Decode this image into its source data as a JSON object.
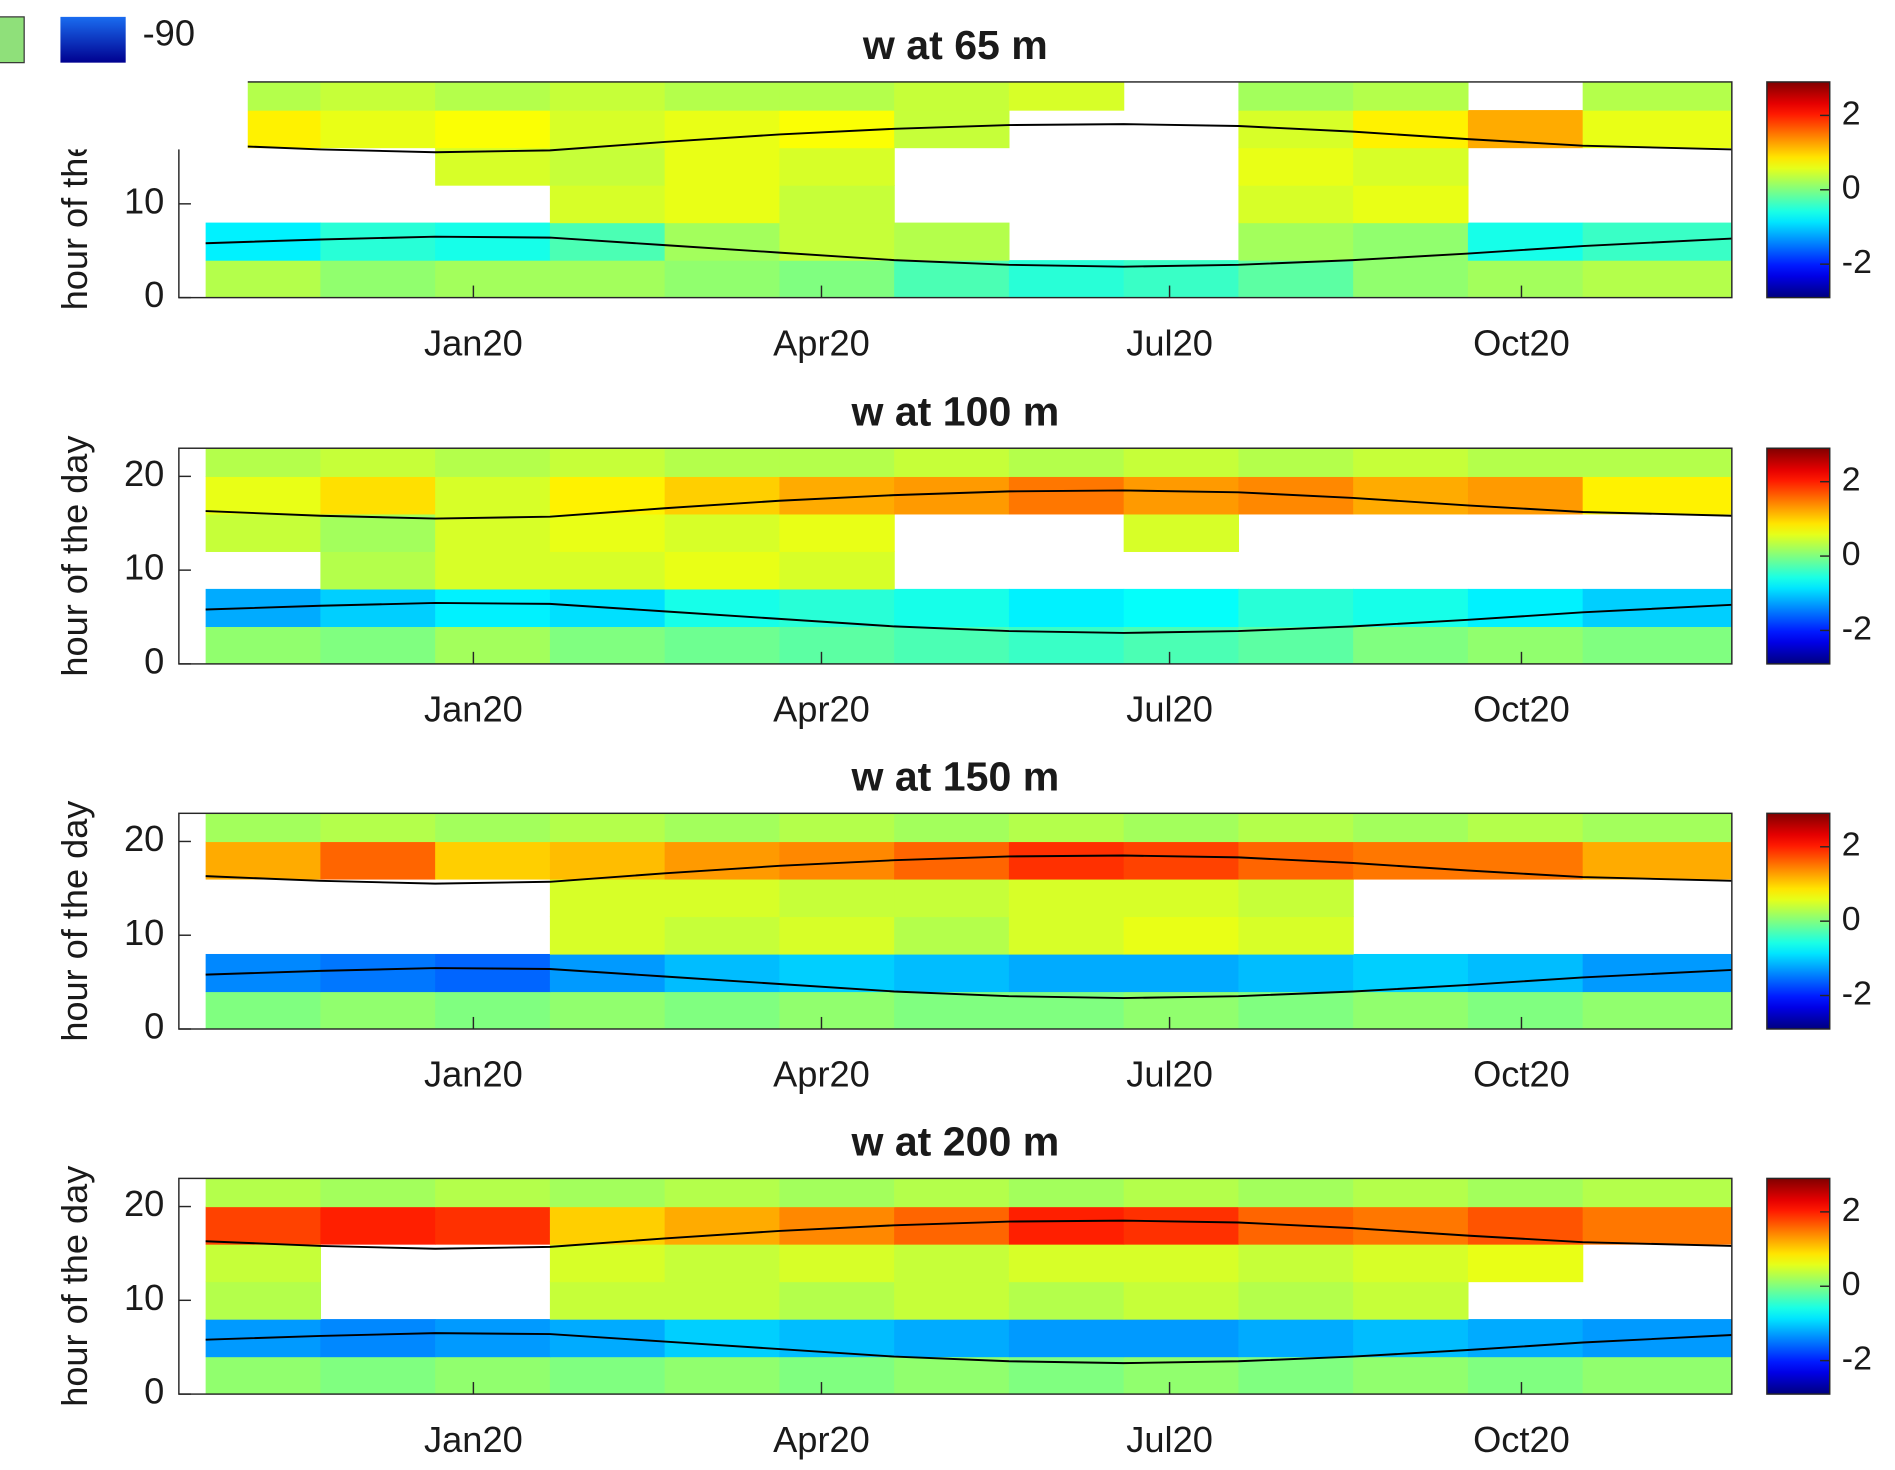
{
  "chart_data": [
    {
      "type": "heatmap",
      "title": "w at 65 m",
      "ylabel": "hour of the day",
      "colormap": "jet",
      "xlim": [
        -77,
        329
      ],
      "xticks": [
        {
          "value": 0,
          "label": "Jan20"
        },
        {
          "value": 91,
          "label": "Apr20"
        },
        {
          "value": 182,
          "label": "Jul20"
        },
        {
          "value": 274,
          "label": "Oct20"
        }
      ],
      "ylim": [
        0,
        23
      ],
      "yticks": [
        0,
        10
      ],
      "clim": [
        -2.9,
        2.9
      ],
      "cbar_ticks": [
        -2,
        0,
        2
      ],
      "x_bins": [
        -70,
        -40,
        -10,
        20,
        50,
        80,
        110,
        140,
        170,
        200,
        230,
        260,
        290,
        329
      ],
      "y_bins": [
        0,
        4,
        8,
        12,
        16,
        20,
        23
      ],
      "z": [
        [
          0.3,
          0.1,
          0.2,
          0.2,
          0.1,
          0.0,
          -0.3,
          -0.5,
          -0.4,
          -0.2,
          0.1,
          0.2,
          0.3
        ],
        [
          -0.8,
          -0.5,
          -0.6,
          -0.3,
          0.2,
          0.4,
          0.3,
          null,
          null,
          0.2,
          0.1,
          -0.6,
          -0.4
        ],
        [
          null,
          null,
          null,
          0.5,
          0.6,
          0.4,
          null,
          null,
          null,
          0.5,
          0.6,
          null,
          null
        ],
        [
          null,
          null,
          0.5,
          0.4,
          0.6,
          0.5,
          null,
          null,
          null,
          0.6,
          0.5,
          null,
          null
        ],
        [
          0.8,
          0.6,
          0.7,
          0.5,
          0.6,
          0.7,
          0.4,
          null,
          null,
          0.5,
          0.8,
          1.2,
          0.6
        ],
        [
          0.3,
          0.4,
          0.3,
          0.4,
          0.3,
          0.3,
          0.4,
          0.5,
          null,
          0.2,
          0.3,
          null,
          0.3
        ]
      ],
      "lines": {
        "x": [
          -70,
          -40,
          -10,
          20,
          50,
          80,
          110,
          140,
          170,
          200,
          230,
          260,
          290,
          329
        ],
        "series": [
          {
            "color": "#000000",
            "values": [
              16.3,
              15.8,
              15.5,
              15.7,
              16.6,
              17.4,
              18.0,
              18.4,
              18.5,
              18.3,
              17.7,
              16.9,
              16.2,
              15.8
            ]
          },
          {
            "color": "#000000",
            "values": [
              5.8,
              6.2,
              6.5,
              6.4,
              5.6,
              4.8,
              4.0,
              3.5,
              3.3,
              3.5,
              4.0,
              4.7,
              5.5,
              6.3
            ]
          }
        ]
      }
    },
    {
      "type": "heatmap",
      "title": "w at 100 m",
      "ylabel": "hour of the day",
      "colormap": "jet",
      "xlim": [
        -77,
        329
      ],
      "xticks": [
        {
          "value": 0,
          "label": "Jan20"
        },
        {
          "value": 91,
          "label": "Apr20"
        },
        {
          "value": 182,
          "label": "Jul20"
        },
        {
          "value": 274,
          "label": "Oct20"
        }
      ],
      "ylim": [
        0,
        23
      ],
      "yticks": [
        0,
        10,
        20
      ],
      "clim": [
        -2.9,
        2.9
      ],
      "cbar_ticks": [
        -2,
        0,
        2
      ],
      "x_bins": [
        -70,
        -40,
        -10,
        20,
        50,
        80,
        110,
        140,
        170,
        200,
        230,
        260,
        290,
        329
      ],
      "y_bins": [
        0,
        4,
        8,
        12,
        16,
        20,
        23
      ],
      "z": [
        [
          0.1,
          0.0,
          0.2,
          0.0,
          -0.1,
          -0.2,
          -0.3,
          -0.4,
          -0.3,
          -0.2,
          0.0,
          0.1,
          0.0
        ],
        [
          -1.2,
          -1.0,
          -0.8,
          -0.9,
          -0.6,
          -0.5,
          -0.6,
          -0.8,
          -0.7,
          -0.5,
          -0.6,
          -0.8,
          -1.0
        ],
        [
          null,
          0.3,
          0.5,
          0.5,
          0.6,
          0.5,
          null,
          null,
          null,
          null,
          null,
          null,
          null
        ],
        [
          0.4,
          0.2,
          0.5,
          0.6,
          0.5,
          0.6,
          null,
          null,
          0.5,
          null,
          null,
          null,
          null
        ],
        [
          0.6,
          0.9,
          0.5,
          0.8,
          1.0,
          1.2,
          1.3,
          1.5,
          1.3,
          1.4,
          1.2,
          1.3,
          0.8
        ],
        [
          0.3,
          0.4,
          0.3,
          0.4,
          0.3,
          0.3,
          0.4,
          0.3,
          0.4,
          0.3,
          0.4,
          0.3,
          0.3
        ]
      ],
      "lines": {
        "x": [
          -70,
          -40,
          -10,
          20,
          50,
          80,
          110,
          140,
          170,
          200,
          230,
          260,
          290,
          329
        ],
        "series": [
          {
            "color": "#000000",
            "values": [
              16.3,
              15.8,
              15.5,
              15.7,
              16.6,
              17.4,
              18.0,
              18.4,
              18.5,
              18.3,
              17.7,
              16.9,
              16.2,
              15.8
            ]
          },
          {
            "color": "#000000",
            "values": [
              5.8,
              6.2,
              6.5,
              6.4,
              5.6,
              4.8,
              4.0,
              3.5,
              3.3,
              3.5,
              4.0,
              4.7,
              5.5,
              6.3
            ]
          }
        ]
      }
    },
    {
      "type": "heatmap",
      "title": "w at 150 m",
      "ylabel": "hour of the day",
      "colormap": "jet",
      "xlim": [
        -77,
        329
      ],
      "xticks": [
        {
          "value": 0,
          "label": "Jan20"
        },
        {
          "value": 91,
          "label": "Apr20"
        },
        {
          "value": 182,
          "label": "Jul20"
        },
        {
          "value": 274,
          "label": "Oct20"
        }
      ],
      "ylim": [
        0,
        23
      ],
      "yticks": [
        0,
        10,
        20
      ],
      "clim": [
        -2.9,
        2.9
      ],
      "cbar_ticks": [
        -2,
        0,
        2
      ],
      "x_bins": [
        -70,
        -40,
        -10,
        20,
        50,
        80,
        110,
        140,
        170,
        200,
        230,
        260,
        290,
        329
      ],
      "y_bins": [
        0,
        4,
        8,
        12,
        16,
        20,
        23
      ],
      "z": [
        [
          0.0,
          0.1,
          0.0,
          0.1,
          0.0,
          0.1,
          0.0,
          0.0,
          0.1,
          0.0,
          0.1,
          0.0,
          0.1
        ],
        [
          -1.4,
          -1.5,
          -1.6,
          -1.3,
          -1.1,
          -1.0,
          -1.1,
          -1.2,
          -1.2,
          -1.1,
          -1.0,
          -1.1,
          -1.3
        ],
        [
          null,
          null,
          null,
          0.5,
          0.4,
          0.5,
          0.3,
          0.5,
          0.6,
          0.5,
          null,
          null,
          null
        ],
        [
          null,
          null,
          null,
          0.5,
          0.5,
          0.4,
          0.4,
          0.5,
          0.5,
          0.4,
          null,
          null,
          null
        ],
        [
          1.2,
          1.6,
          1.0,
          1.1,
          1.3,
          1.4,
          1.6,
          1.9,
          1.8,
          1.6,
          1.5,
          1.5,
          1.2
        ],
        [
          0.2,
          0.3,
          0.2,
          0.3,
          0.2,
          0.3,
          0.2,
          0.3,
          0.2,
          0.3,
          0.2,
          0.3,
          0.2
        ]
      ],
      "lines": {
        "x": [
          -70,
          -40,
          -10,
          20,
          50,
          80,
          110,
          140,
          170,
          200,
          230,
          260,
          290,
          329
        ],
        "series": [
          {
            "color": "#000000",
            "values": [
              16.3,
              15.8,
              15.5,
              15.7,
              16.6,
              17.4,
              18.0,
              18.4,
              18.5,
              18.3,
              17.7,
              16.9,
              16.2,
              15.8
            ]
          },
          {
            "color": "#000000",
            "values": [
              5.8,
              6.2,
              6.5,
              6.4,
              5.6,
              4.8,
              4.0,
              3.5,
              3.3,
              3.5,
              4.0,
              4.7,
              5.5,
              6.3
            ]
          }
        ]
      }
    },
    {
      "type": "heatmap",
      "title": "w at 200 m",
      "ylabel": "hour of the day",
      "colormap": "jet",
      "xlim": [
        -77,
        329
      ],
      "xticks": [
        {
          "value": 0,
          "label": "Jan20"
        },
        {
          "value": 91,
          "label": "Apr20"
        },
        {
          "value": 182,
          "label": "Jul20"
        },
        {
          "value": 274,
          "label": "Oct20"
        }
      ],
      "ylim": [
        0,
        23
      ],
      "yticks": [
        0,
        10,
        20
      ],
      "clim": [
        -2.9,
        2.9
      ],
      "cbar_ticks": [
        -2,
        0,
        2
      ],
      "x_bins": [
        -70,
        -40,
        -10,
        20,
        50,
        80,
        110,
        140,
        170,
        200,
        230,
        260,
        290,
        329
      ],
      "y_bins": [
        0,
        4,
        8,
        12,
        16,
        20,
        23
      ],
      "z": [
        [
          0.1,
          0.0,
          0.1,
          0.0,
          0.1,
          0.0,
          0.1,
          0.0,
          0.1,
          0.0,
          0.1,
          0.0,
          0.1
        ],
        [
          -1.3,
          -1.4,
          -1.3,
          -1.2,
          -1.0,
          -1.1,
          -1.2,
          -1.3,
          -1.3,
          -1.2,
          -1.1,
          -1.2,
          -1.3
        ],
        [
          0.3,
          null,
          null,
          0.4,
          0.4,
          0.3,
          0.4,
          0.3,
          0.4,
          0.3,
          0.4,
          null,
          null
        ],
        [
          0.4,
          null,
          null,
          0.5,
          0.4,
          0.5,
          0.4,
          0.5,
          0.5,
          0.4,
          0.5,
          0.6,
          null
        ],
        [
          1.8,
          2.0,
          1.9,
          1.0,
          1.2,
          1.4,
          1.6,
          2.0,
          1.9,
          1.6,
          1.5,
          1.7,
          1.5
        ],
        [
          0.3,
          0.2,
          0.3,
          0.2,
          0.3,
          0.2,
          0.3,
          0.2,
          0.3,
          0.2,
          0.3,
          0.2,
          0.3
        ]
      ],
      "lines": {
        "x": [
          -70,
          -40,
          -10,
          20,
          50,
          80,
          110,
          140,
          170,
          200,
          230,
          260,
          290,
          329
        ],
        "series": [
          {
            "color": "#000000",
            "values": [
              16.3,
              15.8,
              15.5,
              15.7,
              16.6,
              17.4,
              18.0,
              18.4,
              18.5,
              18.3,
              17.7,
              16.9,
              16.2,
              15.8
            ]
          },
          {
            "color": "#000000",
            "values": [
              5.8,
              6.2,
              6.5,
              6.4,
              5.6,
              4.8,
              4.0,
              3.5,
              3.3,
              3.5,
              4.0,
              4.7,
              5.5,
              6.3
            ]
          }
        ]
      }
    }
  ],
  "overlay": {
    "label": "-90"
  }
}
